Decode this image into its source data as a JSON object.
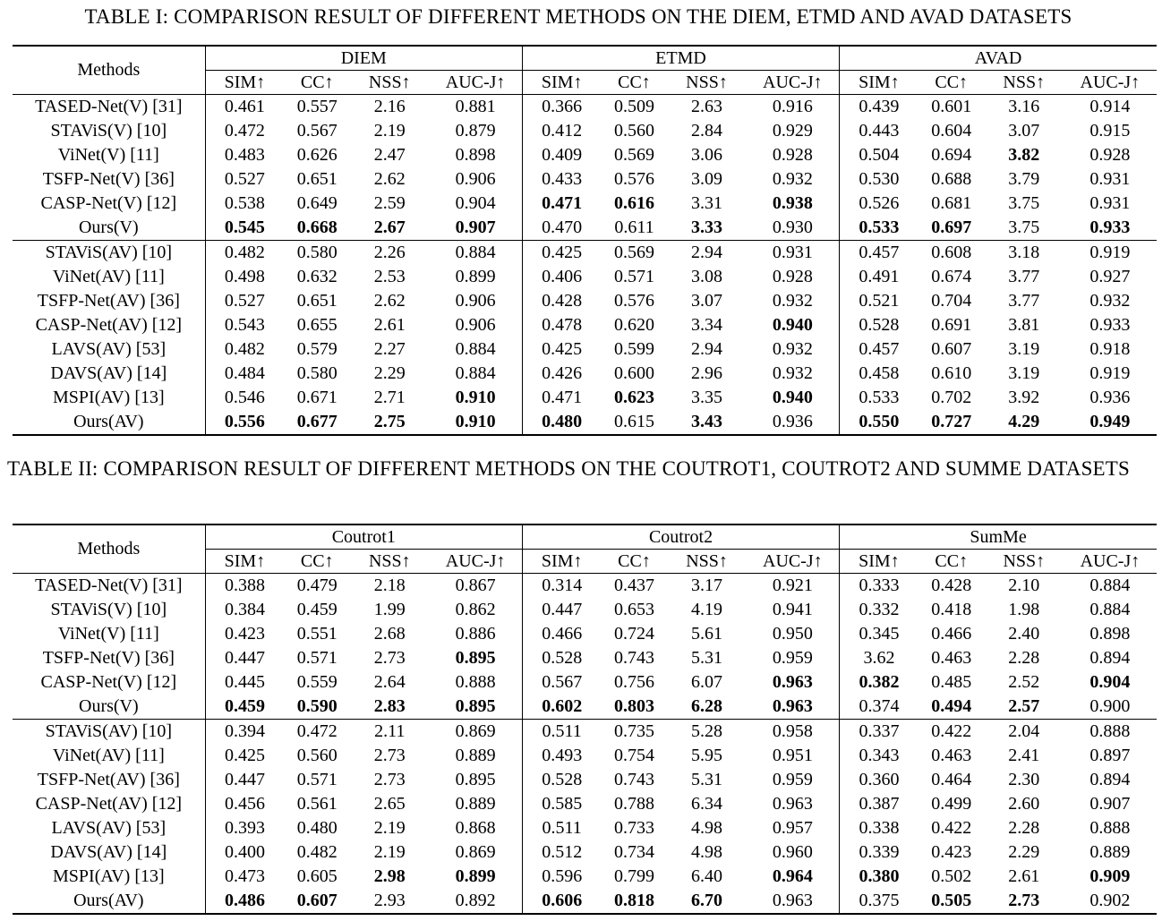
{
  "table1": {
    "caption": "TABLE I: COMPARISON RESULT OF DIFFERENT METHODS ON THE DIEM, ETMD AND AVAD DATASETS",
    "methods_header": "Methods",
    "groups": [
      "DIEM",
      "ETMD",
      "AVAD"
    ],
    "metrics": [
      "SIM↑",
      "CC↑",
      "NSS↑",
      "AUC-J↑"
    ],
    "rows_v": [
      {
        "method": "TASED-Net(V) [31]",
        "vals": [
          "0.461",
          "0.557",
          "2.16",
          "0.881",
          "0.366",
          "0.509",
          "2.63",
          "0.916",
          "0.439",
          "0.601",
          "3.16",
          "0.914"
        ],
        "bold": []
      },
      {
        "method": "STAViS(V) [10]",
        "vals": [
          "0.472",
          "0.567",
          "2.19",
          "0.879",
          "0.412",
          "0.560",
          "2.84",
          "0.929",
          "0.443",
          "0.604",
          "3.07",
          "0.915"
        ],
        "bold": []
      },
      {
        "method": "ViNet(V) [11]",
        "vals": [
          "0.483",
          "0.626",
          "2.47",
          "0.898",
          "0.409",
          "0.569",
          "3.06",
          "0.928",
          "0.504",
          "0.694",
          "3.82",
          "0.928"
        ],
        "bold": [
          10
        ]
      },
      {
        "method": "TSFP-Net(V) [36]",
        "vals": [
          "0.527",
          "0.651",
          "2.62",
          "0.906",
          "0.433",
          "0.576",
          "3.09",
          "0.932",
          "0.530",
          "0.688",
          "3.79",
          "0.931"
        ],
        "bold": []
      },
      {
        "method": "CASP-Net(V) [12]",
        "vals": [
          "0.538",
          "0.649",
          "2.59",
          "0.904",
          "0.471",
          "0.616",
          "3.31",
          "0.938",
          "0.526",
          "0.681",
          "3.75",
          "0.931"
        ],
        "bold": [
          4,
          5,
          7
        ]
      },
      {
        "method": "Ours(V)",
        "vals": [
          "0.545",
          "0.668",
          "2.67",
          "0.907",
          "0.470",
          "0.611",
          "3.33",
          "0.930",
          "0.533",
          "0.697",
          "3.75",
          "0.933"
        ],
        "bold": [
          0,
          1,
          2,
          3,
          6,
          8,
          9,
          11
        ]
      }
    ],
    "rows_av": [
      {
        "method": "STAViS(AV) [10]",
        "vals": [
          "0.482",
          "0.580",
          "2.26",
          "0.884",
          "0.425",
          "0.569",
          "2.94",
          "0.931",
          "0.457",
          "0.608",
          "3.18",
          "0.919"
        ],
        "bold": []
      },
      {
        "method": "ViNet(AV) [11]",
        "vals": [
          "0.498",
          "0.632",
          "2.53",
          "0.899",
          "0.406",
          "0.571",
          "3.08",
          "0.928",
          "0.491",
          "0.674",
          "3.77",
          "0.927"
        ],
        "bold": []
      },
      {
        "method": "TSFP-Net(AV) [36]",
        "vals": [
          "0.527",
          "0.651",
          "2.62",
          "0.906",
          "0.428",
          "0.576",
          "3.07",
          "0.932",
          "0.521",
          "0.704",
          "3.77",
          "0.932"
        ],
        "bold": []
      },
      {
        "method": "CASP-Net(AV) [12]",
        "vals": [
          "0.543",
          "0.655",
          "2.61",
          "0.906",
          "0.478",
          "0.620",
          "3.34",
          "0.940",
          "0.528",
          "0.691",
          "3.81",
          "0.933"
        ],
        "bold": [
          7
        ]
      },
      {
        "method": "LAVS(AV) [53]",
        "vals": [
          "0.482",
          "0.579",
          "2.27",
          "0.884",
          "0.425",
          "0.599",
          "2.94",
          "0.932",
          "0.457",
          "0.607",
          "3.19",
          "0.918"
        ],
        "bold": []
      },
      {
        "method": "DAVS(AV) [14]",
        "vals": [
          "0.484",
          "0.580",
          "2.29",
          "0.884",
          "0.426",
          "0.600",
          "2.96",
          "0.932",
          "0.458",
          "0.610",
          "3.19",
          "0.919"
        ],
        "bold": []
      },
      {
        "method": "MSPI(AV) [13]",
        "vals": [
          "0.546",
          "0.671",
          "2.71",
          "0.910",
          "0.471",
          "0.623",
          "3.35",
          "0.940",
          "0.533",
          "0.702",
          "3.92",
          "0.936"
        ],
        "bold": [
          3,
          5,
          7
        ]
      },
      {
        "method": "Ours(AV)",
        "vals": [
          "0.556",
          "0.677",
          "2.75",
          "0.910",
          "0.480",
          "0.615",
          "3.43",
          "0.936",
          "0.550",
          "0.727",
          "4.29",
          "0.949"
        ],
        "bold": [
          0,
          1,
          2,
          3,
          4,
          6,
          8,
          9,
          10,
          11
        ]
      }
    ]
  },
  "table2": {
    "caption": "TABLE II: COMPARISON RESULT OF DIFFERENT METHODS ON THE COUTROT1, COUTROT2 AND SUMME DATASETS",
    "methods_header": "Methods",
    "groups": [
      "Coutrot1",
      "Coutrot2",
      "SumMe"
    ],
    "metrics": [
      "SIM↑",
      "CC↑",
      "NSS↑",
      "AUC-J↑"
    ],
    "rows_v": [
      {
        "method": "TASED-Net(V) [31]",
        "vals": [
          "0.388",
          "0.479",
          "2.18",
          "0.867",
          "0.314",
          "0.437",
          "3.17",
          "0.921",
          "0.333",
          "0.428",
          "2.10",
          "0.884"
        ],
        "bold": []
      },
      {
        "method": "STAViS(V) [10]",
        "vals": [
          "0.384",
          "0.459",
          "1.99",
          "0.862",
          "0.447",
          "0.653",
          "4.19",
          "0.941",
          "0.332",
          "0.418",
          "1.98",
          "0.884"
        ],
        "bold": []
      },
      {
        "method": "ViNet(V) [11]",
        "vals": [
          "0.423",
          "0.551",
          "2.68",
          "0.886",
          "0.466",
          "0.724",
          "5.61",
          "0.950",
          "0.345",
          "0.466",
          "2.40",
          "0.898"
        ],
        "bold": []
      },
      {
        "method": "TSFP-Net(V) [36]",
        "vals": [
          "0.447",
          "0.571",
          "2.73",
          "0.895",
          "0.528",
          "0.743",
          "5.31",
          "0.959",
          "3.62",
          "0.463",
          "2.28",
          "0.894"
        ],
        "bold": [
          3
        ]
      },
      {
        "method": "CASP-Net(V) [12]",
        "vals": [
          "0.445",
          "0.559",
          "2.64",
          "0.888",
          "0.567",
          "0.756",
          "6.07",
          "0.963",
          "0.382",
          "0.485",
          "2.52",
          "0.904"
        ],
        "bold": [
          7,
          8,
          11
        ]
      },
      {
        "method": "Ours(V)",
        "vals": [
          "0.459",
          "0.590",
          "2.83",
          "0.895",
          "0.602",
          "0.803",
          "6.28",
          "0.963",
          "0.374",
          "0.494",
          "2.57",
          "0.900"
        ],
        "bold": [
          0,
          1,
          2,
          3,
          4,
          5,
          6,
          7,
          9,
          10
        ]
      }
    ],
    "rows_av": [
      {
        "method": "STAViS(AV) [10]",
        "vals": [
          "0.394",
          "0.472",
          "2.11",
          "0.869",
          "0.511",
          "0.735",
          "5.28",
          "0.958",
          "0.337",
          "0.422",
          "2.04",
          "0.888"
        ],
        "bold": []
      },
      {
        "method": "ViNet(AV) [11]",
        "vals": [
          "0.425",
          "0.560",
          "2.73",
          "0.889",
          "0.493",
          "0.754",
          "5.95",
          "0.951",
          "0.343",
          "0.463",
          "2.41",
          "0.897"
        ],
        "bold": []
      },
      {
        "method": "TSFP-Net(AV) [36]",
        "vals": [
          "0.447",
          "0.571",
          "2.73",
          "0.895",
          "0.528",
          "0.743",
          "5.31",
          "0.959",
          "0.360",
          "0.464",
          "2.30",
          "0.894"
        ],
        "bold": []
      },
      {
        "method": "CASP-Net(AV) [12]",
        "vals": [
          "0.456",
          "0.561",
          "2.65",
          "0.889",
          "0.585",
          "0.788",
          "6.34",
          "0.963",
          "0.387",
          "0.499",
          "2.60",
          "0.907"
        ],
        "bold": []
      },
      {
        "method": "LAVS(AV) [53]",
        "vals": [
          "0.393",
          "0.480",
          "2.19",
          "0.868",
          "0.511",
          "0.733",
          "4.98",
          "0.957",
          "0.338",
          "0.422",
          "2.28",
          "0.888"
        ],
        "bold": []
      },
      {
        "method": "DAVS(AV) [14]",
        "vals": [
          "0.400",
          "0.482",
          "2.19",
          "0.869",
          "0.512",
          "0.734",
          "4.98",
          "0.960",
          "0.339",
          "0.423",
          "2.29",
          "0.889"
        ],
        "bold": []
      },
      {
        "method": "MSPI(AV) [13]",
        "vals": [
          "0.473",
          "0.605",
          "2.98",
          "0.899",
          "0.596",
          "0.799",
          "6.40",
          "0.964",
          "0.380",
          "0.502",
          "2.61",
          "0.909"
        ],
        "bold": [
          2,
          3,
          7,
          8,
          11
        ]
      },
      {
        "method": "Ours(AV)",
        "vals": [
          "0.486",
          "0.607",
          "2.93",
          "0.892",
          "0.606",
          "0.818",
          "6.70",
          "0.963",
          "0.375",
          "0.505",
          "2.73",
          "0.902"
        ],
        "bold": [
          0,
          1,
          4,
          5,
          6,
          9,
          10
        ]
      }
    ]
  }
}
